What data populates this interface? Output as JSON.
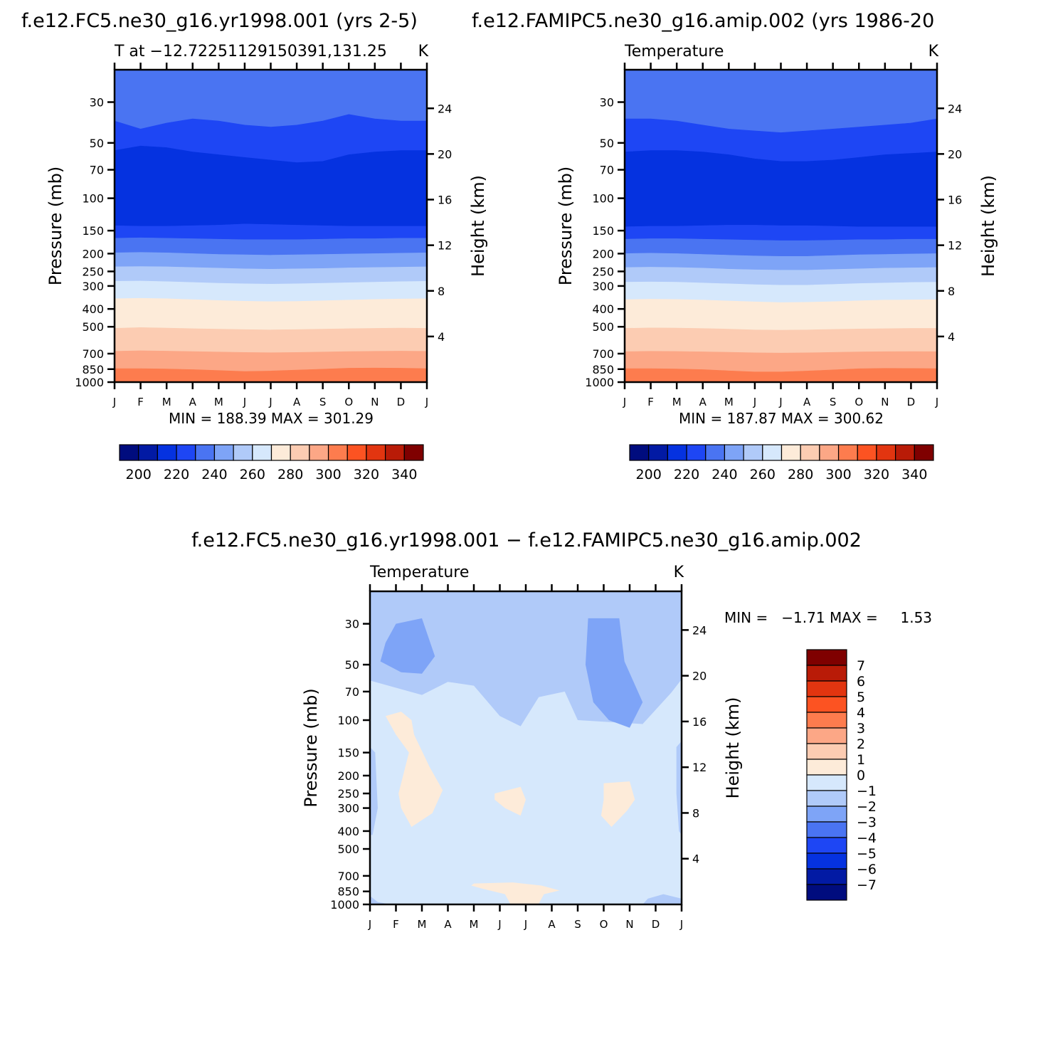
{
  "colors": {
    "abs_levels": [
      "#000c7e",
      "#021aa4",
      "#0532e0",
      "#1e46f4",
      "#4a74f2",
      "#7ea4f7",
      "#b0caf9",
      "#d6e8fc",
      "#fdebd9",
      "#fcccb2",
      "#fca786",
      "#fd7c4e",
      "#fc5322",
      "#e23510",
      "#b91b07",
      "#7f0000"
    ],
    "diff_levels": [
      "#000c7e",
      "#021aa4",
      "#0532e0",
      "#1e46f4",
      "#4a74f2",
      "#7ea4f7",
      "#b0caf9",
      "#d6e8fc",
      "#fdebd9",
      "#fcccb2",
      "#fca786",
      "#fd7c4e",
      "#fc5322",
      "#e23510",
      "#b91b07",
      "#7f0000"
    ]
  },
  "chart_data": [
    {
      "type": "contour",
      "title": "f.e12.FC5.ne30_g16.yr1998.001 (yrs 2-5)",
      "subtitle_left": "T at −12.7225112915039​1,131.25",
      "subtitle_right": "K",
      "xlabel": "",
      "ylabel": "Pressure (mb)",
      "ylabel_right": "Height (km)",
      "x_ticks": [
        "J",
        "F",
        "M",
        "A",
        "M",
        "J",
        "J",
        "A",
        "S",
        "O",
        "N",
        "D",
        "J"
      ],
      "y_ticks_left": [
        30,
        50,
        70,
        100,
        150,
        200,
        250,
        300,
        400,
        500,
        700,
        850,
        1000
      ],
      "y_ticks_right": [
        24,
        20,
        16,
        12,
        8,
        4
      ],
      "ylim": [
        20,
        1000
      ],
      "y_scale": "log-pressure",
      "stats": "MIN = 188.39 MAX = 301.29",
      "colorbar_labels": [
        "200",
        "220",
        "240",
        "260",
        "280",
        "300",
        "320",
        "340"
      ],
      "bands": [
        {
          "level": 230,
          "boundary": [
            38,
            42,
            39,
            37,
            38,
            40,
            41,
            40,
            38,
            35,
            37,
            38,
            38
          ]
        },
        {
          "level": 220,
          "boundary": [
            55,
            52,
            53,
            56,
            58,
            60,
            62,
            64,
            63,
            58,
            56,
            55,
            55
          ]
        },
        {
          "level": 210,
          "boundary": [
            141,
            142,
            142,
            141,
            140,
            138,
            139,
            140,
            141,
            142,
            142,
            142,
            142
          ]
        },
        {
          "level": 220,
          "boundary": [
            165,
            164,
            165,
            166,
            167,
            168,
            168,
            168,
            167,
            166,
            166,
            165,
            165
          ]
        },
        {
          "level": 230,
          "boundary": [
            198,
            197,
            198,
            200,
            202,
            203,
            204,
            203,
            202,
            201,
            200,
            199,
            198
          ]
        },
        {
          "level": 240,
          "boundary": [
            236,
            235,
            236,
            238,
            240,
            242,
            243,
            242,
            241,
            239,
            238,
            237,
            236
          ]
        },
        {
          "level": 250,
          "boundary": [
            283,
            282,
            284,
            287,
            290,
            292,
            293,
            292,
            290,
            288,
            286,
            284,
            283
          ]
        },
        {
          "level": 260,
          "boundary": [
            352,
            350,
            352,
            356,
            360,
            363,
            365,
            364,
            361,
            358,
            355,
            353,
            352
          ]
        },
        {
          "level": 270,
          "boundary": [
            510,
            505,
            508,
            512,
            515,
            518,
            520,
            518,
            515,
            512,
            510,
            508,
            510
          ]
        },
        {
          "level": 280,
          "boundary": [
            680,
            675,
            678,
            682,
            686,
            690,
            692,
            690,
            686,
            682,
            680,
            678,
            680
          ]
        },
        {
          "level": 290,
          "boundary": [
            845,
            845,
            848,
            855,
            865,
            875,
            870,
            860,
            850,
            840,
            838,
            840,
            845
          ]
        },
        {
          "level": 300,
          "boundary": [
            1000,
            1000,
            1000,
            1000,
            1000,
            1000,
            1000,
            1000,
            1000,
            1000,
            1000,
            1000,
            1000
          ]
        }
      ]
    },
    {
      "type": "contour",
      "title": "f.e12.FAMIPC5.ne30_g16.amip.002 (yrs 1986-20",
      "subtitle_left": "Temperature",
      "subtitle_right": "K",
      "xlabel": "",
      "ylabel": "Pressure (mb)",
      "ylabel_right": "Height (km)",
      "x_ticks": [
        "J",
        "F",
        "M",
        "A",
        "M",
        "J",
        "J",
        "A",
        "S",
        "O",
        "N",
        "D",
        "J"
      ],
      "y_ticks_left": [
        30,
        50,
        70,
        100,
        150,
        200,
        250,
        300,
        400,
        500,
        700,
        850,
        1000
      ],
      "y_ticks_right": [
        24,
        20,
        16,
        12,
        8,
        4
      ],
      "ylim": [
        20,
        1000
      ],
      "y_scale": "log-pressure",
      "stats": "MIN = 187.87 MAX = 300.62",
      "colorbar_labels": [
        "200",
        "220",
        "240",
        "260",
        "280",
        "300",
        "320",
        "340"
      ],
      "bands": [
        {
          "level": 230,
          "boundary": [
            37,
            37,
            38,
            40,
            42,
            43,
            44,
            43,
            42,
            41,
            40,
            39,
            37
          ]
        },
        {
          "level": 220,
          "boundary": [
            56,
            55,
            55,
            56,
            58,
            61,
            63,
            63,
            62,
            60,
            58,
            57,
            56
          ]
        },
        {
          "level": 210,
          "boundary": [
            143,
            142,
            142,
            141,
            140,
            140,
            141,
            141,
            142,
            143,
            143,
            143,
            143
          ]
        },
        {
          "level": 220,
          "boundary": [
            167,
            166,
            166,
            167,
            168,
            169,
            170,
            170,
            169,
            168,
            168,
            167,
            167
          ]
        },
        {
          "level": 230,
          "boundary": [
            200,
            199,
            200,
            202,
            204,
            206,
            207,
            207,
            205,
            203,
            202,
            201,
            200
          ]
        },
        {
          "level": 240,
          "boundary": [
            238,
            237,
            238,
            240,
            243,
            245,
            246,
            246,
            244,
            242,
            240,
            239,
            238
          ]
        },
        {
          "level": 250,
          "boundary": [
            286,
            285,
            286,
            289,
            292,
            295,
            297,
            297,
            294,
            291,
            289,
            287,
            286
          ]
        },
        {
          "level": 260,
          "boundary": [
            356,
            354,
            355,
            358,
            362,
            366,
            369,
            368,
            365,
            361,
            358,
            357,
            356
          ]
        },
        {
          "level": 270,
          "boundary": [
            510,
            507,
            508,
            511,
            515,
            520,
            522,
            520,
            517,
            514,
            512,
            510,
            510
          ]
        },
        {
          "level": 280,
          "boundary": [
            683,
            680,
            681,
            684,
            688,
            693,
            695,
            693,
            689,
            685,
            683,
            682,
            683
          ]
        },
        {
          "level": 290,
          "boundary": [
            845,
            845,
            848,
            855,
            868,
            880,
            880,
            870,
            858,
            846,
            842,
            843,
            845
          ]
        },
        {
          "level": 300,
          "boundary": [
            1000,
            1000,
            1000,
            1000,
            1000,
            1000,
            1000,
            1000,
            1000,
            1000,
            1000,
            1000,
            1000
          ]
        }
      ]
    },
    {
      "type": "contour",
      "title": "f.e12.FC5.ne30_g16.yr1998.001 − f.e12.FAMIPC5.ne30_g16.amip.002",
      "subtitle_left": "Temperature",
      "subtitle_right": "K",
      "xlabel": "",
      "ylabel": "Pressure (mb)",
      "ylabel_right": "Height (km)",
      "x_ticks": [
        "J",
        "F",
        "M",
        "A",
        "M",
        "J",
        "J",
        "A",
        "S",
        "O",
        "N",
        "D",
        "J"
      ],
      "y_ticks_left": [
        30,
        50,
        70,
        100,
        150,
        200,
        250,
        300,
        400,
        500,
        700,
        850,
        1000
      ],
      "y_ticks_right": [
        24,
        20,
        16,
        12,
        8,
        4
      ],
      "ylim": [
        20,
        1000
      ],
      "y_scale": "log-pressure",
      "stats": "MIN =   −1.71 MAX =     1.53",
      "colorbar_labels": [
        "7",
        "6",
        "5",
        "4",
        "3",
        "2",
        "1",
        "0",
        "−1",
        "−2",
        "−3",
        "−4",
        "−5",
        "−6",
        "−7"
      ],
      "background_level": "0 to 1",
      "regions": [
        {
          "level": "-1 to 0",
          "points": [
            [
              0,
              20
            ],
            [
              12,
              20
            ],
            [
              12,
              60
            ],
            [
              11.6,
              71
            ],
            [
              10.5,
              105
            ],
            [
              8,
              100
            ],
            [
              7.5,
              70
            ],
            [
              6.5,
              75
            ],
            [
              5.8,
              108
            ],
            [
              5,
              95
            ],
            [
              4,
              65
            ],
            [
              3,
              62
            ],
            [
              2,
              73
            ],
            [
              0,
              61
            ]
          ]
        },
        {
          "level": "-2 to -1",
          "points": [
            [
              1,
              30
            ],
            [
              2,
              28
            ],
            [
              2.5,
              45
            ],
            [
              2,
              56
            ],
            [
              1.2,
              55
            ],
            [
              0.4,
              48
            ],
            [
              0.6,
              38
            ]
          ]
        },
        {
          "level": "-2 to -1",
          "points": [
            [
              8.4,
              28
            ],
            [
              9.6,
              28
            ],
            [
              9.8,
              48
            ],
            [
              10.5,
              80
            ],
            [
              10,
              110
            ],
            [
              9.2,
              100
            ],
            [
              8.6,
              80
            ],
            [
              8.3,
              50
            ]
          ]
        },
        {
          "level": "-1 to 0",
          "points": [
            [
              0,
              140
            ],
            [
              0.2,
              150
            ],
            [
              0.3,
              300
            ],
            [
              0.1,
              420
            ],
            [
              0,
              420
            ]
          ]
        },
        {
          "level": "-1 to 0",
          "points": [
            [
              12,
              130
            ],
            [
              11.8,
              140
            ],
            [
              11.8,
              250
            ],
            [
              11.9,
              400
            ],
            [
              12,
              420
            ]
          ]
        },
        {
          "level": "-1 to 0",
          "points": [
            [
              10.5,
              1000
            ],
            [
              12,
              1000
            ],
            [
              12,
              930
            ],
            [
              11.3,
              880
            ],
            [
              10.7,
              930
            ]
          ]
        },
        {
          "level": "-1 to 0",
          "points": [
            [
              0,
              900
            ],
            [
              0,
              1000
            ],
            [
              0.8,
              1000
            ],
            [
              0.3,
              970
            ]
          ]
        },
        {
          "level": "1 to 2",
          "points": [
            [
              0.6,
              95
            ],
            [
              1.2,
              90
            ],
            [
              1.6,
              100
            ],
            [
              1.7,
              120
            ],
            [
              2.3,
              180
            ],
            [
              2.8,
              240
            ],
            [
              2.4,
              320
            ],
            [
              1.6,
              380
            ],
            [
              1.2,
              300
            ],
            [
              1.1,
              250
            ],
            [
              1.5,
              150
            ],
            [
              1.0,
              120
            ]
          ]
        },
        {
          "level": "1 to 2",
          "points": [
            [
              4.8,
              250
            ],
            [
              5.8,
              230
            ],
            [
              6,
              270
            ],
            [
              5.8,
              330
            ],
            [
              5.2,
              300
            ],
            [
              4.8,
              270
            ]
          ]
        },
        {
          "level": "1 to 2",
          "points": [
            [
              9,
              220
            ],
            [
              10,
              215
            ],
            [
              10.2,
              270
            ],
            [
              9.9,
              310
            ],
            [
              9.3,
              380
            ],
            [
              8.9,
              330
            ],
            [
              9,
              270
            ]
          ]
        },
        {
          "level": "1 to 2",
          "points": [
            [
              4,
              770
            ],
            [
              5.5,
              760
            ],
            [
              6.6,
              790
            ],
            [
              7.3,
              840
            ],
            [
              6.7,
              880
            ],
            [
              6.5,
              990
            ],
            [
              5.4,
              990
            ],
            [
              5.2,
              880
            ],
            [
              4.3,
              820
            ],
            [
              3.9,
              790
            ]
          ]
        }
      ]
    }
  ]
}
